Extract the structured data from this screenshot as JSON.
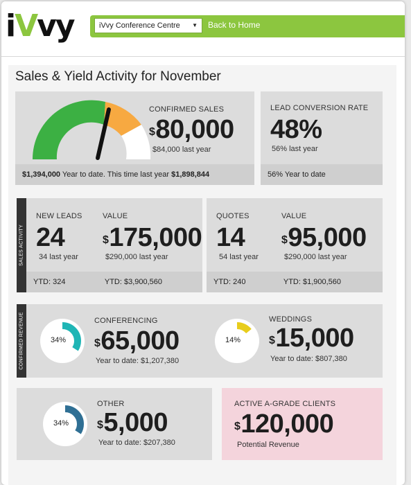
{
  "header": {
    "venue_select": "iVvy Conference Centre",
    "back_link": "Back to Home"
  },
  "page_title": "Sales & Yield Activity for November",
  "confirmed_sales": {
    "label": "CONFIRMED SALES",
    "value": "80,000",
    "currency": "$",
    "last_year": "$84,000 last year",
    "ytd_text": "Year to date. This time last year",
    "ytd_value": "$1,394,000",
    "last_year_value": "$1,898,844",
    "gauge_level": 0.6
  },
  "lead_conversion": {
    "label": "LEAD CONVERSION RATE",
    "value": "48%",
    "last_year": "56% last year",
    "ytd": "56% Year to date"
  },
  "sales_activity": {
    "tab": "SALES ACTIVITY",
    "leads": {
      "label": "NEW LEADS",
      "value": "24",
      "last_year": "34 last year",
      "ytd": "YTD: 324"
    },
    "leads_value": {
      "label": "VALUE",
      "currency": "$",
      "value": "175,000",
      "last_year": "$290,000 last year",
      "ytd": "YTD: $3,900,560"
    },
    "quotes": {
      "label": "QUOTES",
      "value": "14",
      "last_year": "54 last year",
      "ytd": "YTD: 240"
    },
    "quotes_value": {
      "label": "VALUE",
      "currency": "$",
      "value": "95,000",
      "last_year": "$290,000 last year",
      "ytd": "YTD: $1,900,560"
    }
  },
  "confirmed_revenue": {
    "tab": "CONFIRMED REVENUE",
    "conferencing": {
      "label": "CONFERENCING",
      "currency": "$",
      "value": "65,000",
      "ytd": "Year to date: $1,207,380",
      "pct_label": "34%",
      "pct": 34,
      "color": "#1fb5b5"
    },
    "weddings": {
      "label": "WEDDINGS",
      "currency": "$",
      "value": "15,000",
      "ytd": "Year to date: $807,380",
      "pct_label": "14%",
      "pct": 14,
      "color": "#e8cd1c"
    }
  },
  "other": {
    "label": "OTHER",
    "currency": "$",
    "value": "5,000",
    "ytd": "Year to date: $207,380",
    "pct_label": "34%",
    "pct": 34,
    "color": "#2f6f94"
  },
  "active_clients": {
    "label": "ACTIVE A-GRADE CLIENTS",
    "currency": "$",
    "value": "120,000",
    "sub": "Potential Revenue",
    "bg": "#f4d4dc"
  },
  "colors": {
    "brand_green": "#8cc63f",
    "gauge_green": "#3cb043",
    "gauge_orange": "#f7a941",
    "gauge_white": "#ffffff"
  }
}
